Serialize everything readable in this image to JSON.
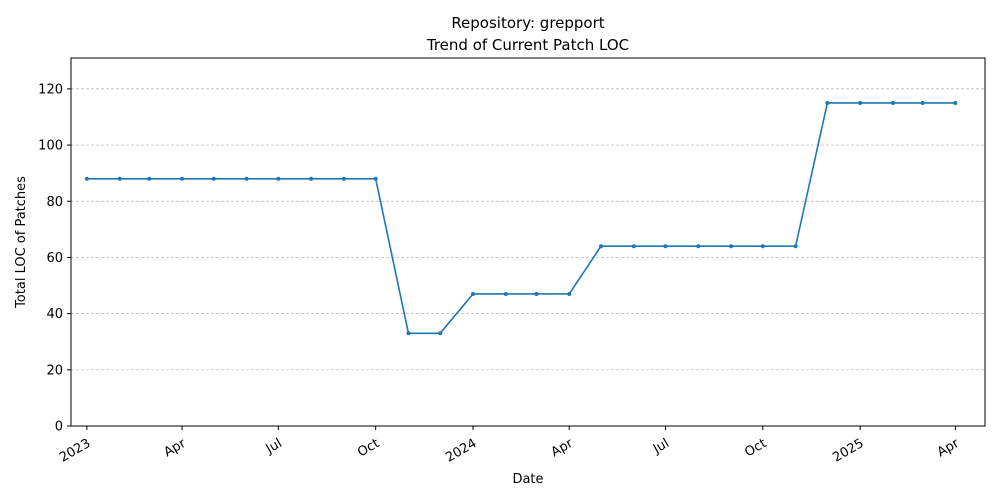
{
  "chart_data": {
    "type": "line",
    "title": "Repository: grepport",
    "subtitle": "Trend of Current Patch LOC",
    "xlabel": "Date",
    "ylabel": "Total LOC of Patches",
    "ylim": [
      0,
      131
    ],
    "yticks": [
      0,
      20,
      40,
      60,
      80,
      100,
      120
    ],
    "grid": "y-axis dashed",
    "xlim": [
      "2022-12-17",
      "2025-04-29"
    ],
    "xticks": [
      {
        "date": "2023-01-01",
        "label": "2023"
      },
      {
        "date": "2023-04-01",
        "label": "Apr"
      },
      {
        "date": "2023-07-01",
        "label": "Jul"
      },
      {
        "date": "2023-10-01",
        "label": "Oct"
      },
      {
        "date": "2024-01-01",
        "label": "2024"
      },
      {
        "date": "2024-04-01",
        "label": "Apr"
      },
      {
        "date": "2024-07-01",
        "label": "Jul"
      },
      {
        "date": "2024-10-01",
        "label": "Oct"
      },
      {
        "date": "2025-01-01",
        "label": "2025"
      },
      {
        "date": "2025-04-01",
        "label": "Apr"
      }
    ],
    "series": [
      {
        "color": "#1f77b4",
        "x": [
          "2023-01-01",
          "2023-02-01",
          "2023-03-01",
          "2023-04-01",
          "2023-05-01",
          "2023-06-01",
          "2023-07-01",
          "2023-08-01",
          "2023-09-01",
          "2023-10-01",
          "2023-11-01",
          "2023-12-01",
          "2024-01-01",
          "2024-02-01",
          "2024-03-01",
          "2024-04-01",
          "2024-05-01",
          "2024-06-01",
          "2024-07-01",
          "2024-08-01",
          "2024-09-01",
          "2024-10-01",
          "2024-11-01",
          "2024-12-01",
          "2025-01-01",
          "2025-02-01",
          "2025-03-01",
          "2025-04-01"
        ],
        "y": [
          88,
          88,
          88,
          88,
          88,
          88,
          88,
          88,
          88,
          88,
          33,
          33,
          47,
          47,
          47,
          47,
          64,
          64,
          64,
          64,
          64,
          64,
          64,
          115,
          115,
          115,
          115,
          115
        ]
      }
    ]
  }
}
